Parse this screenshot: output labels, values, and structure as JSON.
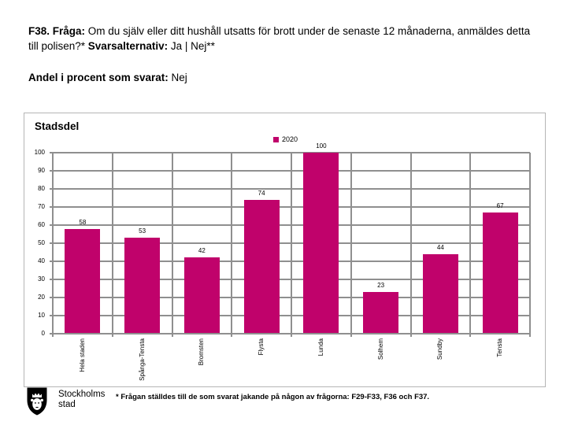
{
  "header": {
    "question_label": "F38. Fråga:",
    "question_text": " Om du själv eller ditt hushåll utsatts för brott under de senaste 12 månaderna, anmäldes detta till polisen?* ",
    "alternatives_label": "Svarsalternativ:",
    "alternatives_text": " Ja | Nej**"
  },
  "subheader": {
    "label": "Andel i procent som svarat:",
    "value": " Nej"
  },
  "chart_data": {
    "type": "bar",
    "title": "Stadsdel",
    "series_name": "2020",
    "categories": [
      "Hela staden",
      "Spånga-Tensta",
      "Bromsten",
      "Flysta",
      "Lunda",
      "Solhem",
      "Sundby",
      "Tensta"
    ],
    "values": [
      58,
      53,
      42,
      74,
      100,
      23,
      44,
      67
    ],
    "ylim": [
      0,
      100
    ],
    "ytick_step": 10,
    "grid": "both",
    "legend_position": "top-right-of-plot",
    "value_labels": true,
    "bar_color": "#c0026b"
  },
  "footer": {
    "logo_title": "Stockholms",
    "logo_subtitle": "stad",
    "footnote": "* Frågan ställdes till de som svarat jakande på någon av frågorna: F29-F33, F36 och F37."
  },
  "colors": {
    "accent": "#c0026b",
    "grid": "#8f8f8f",
    "frame_border": "#b5b5b5",
    "text": "#000000"
  }
}
